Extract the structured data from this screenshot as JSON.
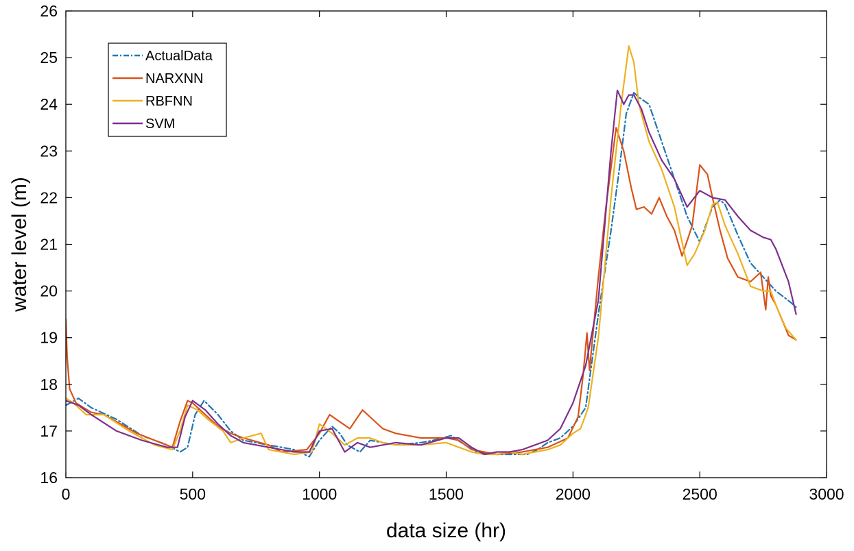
{
  "chart_data": {
    "type": "line",
    "title": "",
    "xlabel": "data size (hr)",
    "ylabel": "water level (m)",
    "xlim": [
      0,
      3000
    ],
    "ylim": [
      16,
      26
    ],
    "xticks": [
      0,
      500,
      1000,
      1500,
      2000,
      2500,
      3000
    ],
    "yticks": [
      16,
      17,
      18,
      19,
      20,
      21,
      22,
      23,
      24,
      25,
      26
    ],
    "grid": false,
    "legend_position": "top-left",
    "series": [
      {
        "name": "ActualData",
        "color": "#1f77b4",
        "dash": "dash-dot",
        "x": [
          0,
          50,
          100,
          200,
          300,
          400,
          450,
          480,
          510,
          545,
          600,
          650,
          700,
          800,
          900,
          960,
          1000,
          1050,
          1080,
          1110,
          1160,
          1200,
          1250,
          1300,
          1400,
          1450,
          1520,
          1560,
          1620,
          1700,
          1760,
          1820,
          1860,
          1900,
          1950,
          2000,
          2050,
          2100,
          2150,
          2180,
          2210,
          2240,
          2260,
          2300,
          2350,
          2400,
          2450,
          2500,
          2550,
          2580,
          2600,
          2650,
          2700,
          2750,
          2800,
          2860,
          2880
        ],
        "values": [
          17.55,
          17.7,
          17.5,
          17.25,
          16.9,
          16.7,
          16.55,
          16.65,
          17.35,
          17.65,
          17.35,
          17.0,
          16.8,
          16.7,
          16.6,
          16.45,
          16.8,
          17.1,
          16.95,
          16.7,
          16.55,
          16.8,
          16.75,
          16.7,
          16.75,
          16.8,
          16.9,
          16.75,
          16.55,
          16.5,
          16.5,
          16.5,
          16.6,
          16.75,
          16.85,
          17.1,
          17.5,
          19.5,
          21.3,
          22.5,
          23.8,
          24.25,
          24.15,
          24.0,
          23.2,
          22.4,
          21.6,
          21.05,
          21.8,
          21.95,
          21.85,
          21.2,
          20.6,
          20.3,
          20.0,
          19.75,
          19.65
        ]
      },
      {
        "name": "NARXNN",
        "color": "#d95319",
        "dash": "solid",
        "x": [
          0,
          5,
          15,
          40,
          100,
          150,
          200,
          280,
          350,
          420,
          450,
          480,
          500,
          550,
          600,
          650,
          700,
          800,
          850,
          950,
          1000,
          1040,
          1080,
          1120,
          1170,
          1200,
          1250,
          1300,
          1400,
          1500,
          1550,
          1600,
          1650,
          1700,
          1800,
          1900,
          1980,
          2020,
          2040,
          2055,
          2065,
          2100,
          2130,
          2170,
          2200,
          2230,
          2250,
          2280,
          2310,
          2340,
          2370,
          2400,
          2430,
          2470,
          2500,
          2530,
          2550,
          2580,
          2610,
          2650,
          2700,
          2740,
          2760,
          2770,
          2780,
          2800,
          2850,
          2880
        ],
        "values": [
          19.4,
          18.6,
          17.9,
          17.6,
          17.4,
          17.35,
          17.2,
          16.95,
          16.8,
          16.65,
          17.2,
          17.65,
          17.6,
          17.35,
          17.1,
          16.95,
          16.85,
          16.7,
          16.55,
          16.6,
          16.95,
          17.35,
          17.2,
          17.05,
          17.45,
          17.3,
          17.05,
          16.95,
          16.85,
          16.85,
          16.8,
          16.6,
          16.55,
          16.5,
          16.55,
          16.65,
          16.85,
          17.3,
          18.2,
          19.1,
          18.3,
          20.3,
          21.8,
          23.5,
          23.0,
          22.2,
          21.75,
          21.8,
          21.65,
          22.0,
          21.6,
          21.3,
          20.75,
          21.4,
          22.7,
          22.5,
          22.0,
          21.3,
          20.7,
          20.3,
          20.2,
          20.4,
          19.6,
          20.3,
          19.9,
          19.7,
          19.05,
          18.95
        ]
      },
      {
        "name": "RBFNN",
        "color": "#edb120",
        "dash": "solid",
        "x": [
          0,
          30,
          80,
          150,
          250,
          350,
          420,
          450,
          480,
          520,
          560,
          620,
          650,
          700,
          770,
          800,
          900,
          970,
          1000,
          1050,
          1100,
          1150,
          1200,
          1250,
          1300,
          1400,
          1500,
          1550,
          1600,
          1650,
          1700,
          1750,
          1800,
          1850,
          1900,
          1950,
          2000,
          2030,
          2060,
          2100,
          2150,
          2190,
          2220,
          2240,
          2260,
          2300,
          2350,
          2400,
          2450,
          2480,
          2520,
          2550,
          2570,
          2600,
          2650,
          2700,
          2750,
          2780,
          2800,
          2840,
          2880
        ],
        "values": [
          17.7,
          17.6,
          17.35,
          17.35,
          17.0,
          16.7,
          16.6,
          17.0,
          17.55,
          17.45,
          17.25,
          17.0,
          16.75,
          16.85,
          16.95,
          16.6,
          16.5,
          16.55,
          17.15,
          16.95,
          16.7,
          16.85,
          16.85,
          16.75,
          16.7,
          16.7,
          16.75,
          16.65,
          16.55,
          16.5,
          16.5,
          16.55,
          16.5,
          16.55,
          16.6,
          16.7,
          16.95,
          17.05,
          17.5,
          19.0,
          22.0,
          24.0,
          25.25,
          24.9,
          24.0,
          23.2,
          22.6,
          21.8,
          20.55,
          20.8,
          21.3,
          21.85,
          21.9,
          21.4,
          20.8,
          20.1,
          20.0,
          20.0,
          19.7,
          19.2,
          18.95
        ]
      },
      {
        "name": "SVM",
        "color": "#7e2f8e",
        "dash": "solid",
        "x": [
          0,
          50,
          100,
          200,
          300,
          400,
          440,
          470,
          500,
          550,
          600,
          650,
          700,
          800,
          900,
          960,
          1000,
          1050,
          1100,
          1150,
          1200,
          1250,
          1300,
          1400,
          1500,
          1550,
          1600,
          1650,
          1700,
          1750,
          1800,
          1850,
          1900,
          1950,
          2000,
          2050,
          2100,
          2150,
          2175,
          2200,
          2220,
          2240,
          2270,
          2300,
          2350,
          2400,
          2450,
          2500,
          2550,
          2600,
          2650,
          2700,
          2750,
          2780,
          2800,
          2850,
          2880
        ],
        "values": [
          17.65,
          17.55,
          17.35,
          17.0,
          16.8,
          16.65,
          16.65,
          17.3,
          17.65,
          17.45,
          17.15,
          16.9,
          16.75,
          16.65,
          16.55,
          16.55,
          17.0,
          17.05,
          16.55,
          16.75,
          16.65,
          16.7,
          16.75,
          16.7,
          16.85,
          16.85,
          16.65,
          16.5,
          16.55,
          16.55,
          16.6,
          16.7,
          16.8,
          17.05,
          17.6,
          18.4,
          19.8,
          23.0,
          24.3,
          24.0,
          24.2,
          24.2,
          23.9,
          23.4,
          22.8,
          22.4,
          21.8,
          22.15,
          22.0,
          21.95,
          21.6,
          21.3,
          21.15,
          21.1,
          20.9,
          20.2,
          19.5
        ]
      }
    ]
  }
}
